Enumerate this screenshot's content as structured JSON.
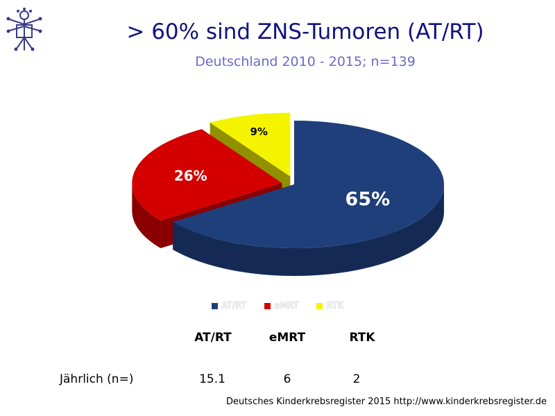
{
  "header": {
    "title": "> 60% sind ZNS-Tumoren (AT/RT)",
    "subtitle": "Deutschland 2010 - 2015; n=139"
  },
  "logo": {
    "icon": "vitruvian-man-logo-icon"
  },
  "chart_data": {
    "type": "pie",
    "categories": [
      "AT/RT",
      "eMRT",
      "RTK"
    ],
    "values": [
      65,
      26,
      9
    ],
    "labels": [
      "65%",
      "26%",
      "9%"
    ],
    "colors": [
      "#1f3f7a",
      "#d40000",
      "#f4f400"
    ],
    "side_colors": [
      "#142a55",
      "#8a0000",
      "#909000"
    ],
    "label_colors": [
      "#ffffff",
      "#ffffff",
      "#000000"
    ],
    "style": "3d-exploded",
    "legend_position": "bottom"
  },
  "table": {
    "headers": [
      "AT/RT",
      "eMRT",
      "RTK"
    ],
    "row_label": "Jährlich (n=)",
    "values": [
      "15.1",
      "6",
      "2"
    ]
  },
  "footer": "Deutsches Kinderkrebsregister 2015 http://www.kinderkrebsregister.de"
}
